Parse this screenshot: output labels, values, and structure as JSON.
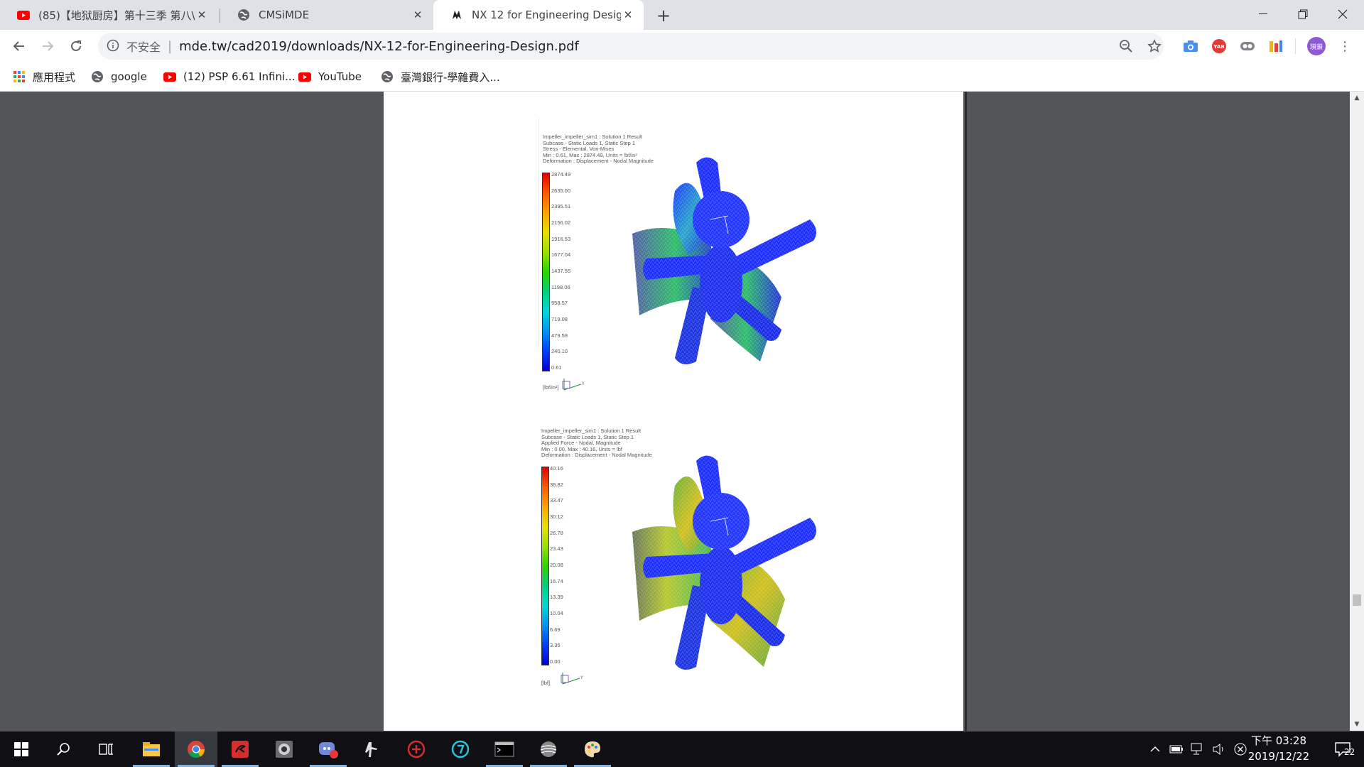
{
  "tabs": [
    {
      "title": "(85)【地狱厨房】第十三季 第八\\",
      "favicon": "youtube-icon",
      "active": false
    },
    {
      "title": "CMSiMDE",
      "favicon": "globe-icon",
      "active": false
    },
    {
      "title": "NX 12 for Engineering Design",
      "favicon": "pdf-viewer-icon",
      "active": true
    }
  ],
  "omnibox": {
    "security": "不安全",
    "url": "mde.tw/cad2019/downloads/NX-12-for-Engineering-Design.pdf"
  },
  "profile": {
    "initials": "瑣鎖",
    "color": "#8e59d6"
  },
  "bookmarks": [
    {
      "label": "應用程式",
      "icon": "apps-grid-icon"
    },
    {
      "label": "google",
      "icon": "globe-icon"
    },
    {
      "label": "(12) PSP 6.61 Infini...",
      "icon": "youtube-icon"
    },
    {
      "label": "YouTube",
      "icon": "youtube-icon"
    },
    {
      "label": "臺灣銀行-學雜費入...",
      "icon": "globe-icon"
    }
  ],
  "figures": {
    "stress": {
      "header": [
        "Impeller_impeller_sim1 : Solution 1 Result",
        "Subcase - Static Loads 1, Static Step 1",
        "Stress - Elemental, Von-Mises",
        "Min : 0.61, Max : 2874.49, Units = lbf/in²",
        "Deformation : Displacement - Nodal Magnitude"
      ],
      "ticks": [
        "2874.49",
        "2635.00",
        "2395.51",
        "2156.02",
        "1916.53",
        "1677.04",
        "1437.55",
        "1198.06",
        "958.57",
        "719.08",
        "479.59",
        "240.10",
        "0.61"
      ],
      "unit": "[lbf/in²]"
    },
    "force": {
      "header": [
        "Impeller_impeller_sim1 : Solution 1 Result",
        "Subcase - Static Loads 1, Static Step 1",
        "Applied Force - Nodal, Magnitude",
        "Min : 0.00, Max : 40.16, Units = lbf",
        "Deformation : Displacement - Nodal Magnitude"
      ],
      "ticks": [
        "40.16",
        "36.82",
        "33.47",
        "30.12",
        "26.78",
        "23.43",
        "20.08",
        "16.74",
        "13.39",
        "10.04",
        "6.69",
        "3.35",
        "0.00"
      ],
      "unit": "[lbf]"
    }
  },
  "taskbar": {
    "apps": [
      "start-icon",
      "search-icon",
      "task-view-icon",
      "file-explorer-icon",
      "chrome-icon",
      "garena-icon",
      "app-icon",
      "discord-icon",
      "cs-icon",
      "app-red-icon",
      "app-teal-icon",
      "terminal-icon",
      "app-sphere-icon",
      "paint-icon"
    ],
    "clock_time": "下午 03:28",
    "clock_date": "2019/12/22",
    "notifications": "22",
    "discord_badge": "1"
  }
}
